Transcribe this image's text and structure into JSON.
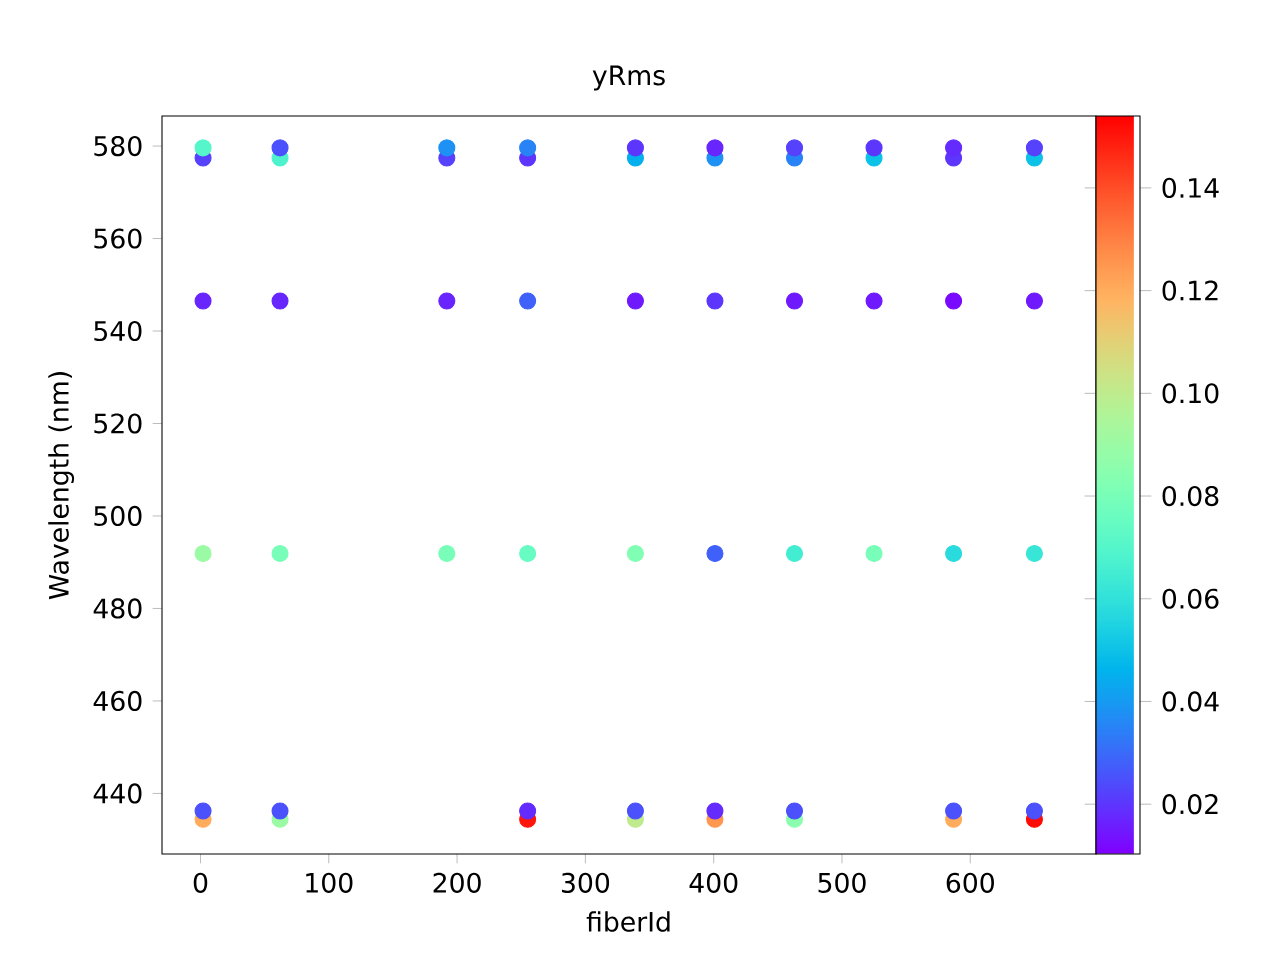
{
  "chart_data": {
    "type": "scatter",
    "title": "yRms",
    "xlabel": "fiberId",
    "ylabel": "Wavelength (nm)",
    "x": [
      2,
      62,
      192,
      255,
      339,
      401,
      463,
      525,
      587,
      650,
      2,
      62,
      192,
      255,
      339,
      401,
      463,
      525,
      587,
      650,
      2,
      62,
      192,
      255,
      339,
      401,
      463,
      525,
      587,
      650,
      2,
      62,
      192,
      255,
      339,
      401,
      463,
      525,
      587,
      650,
      2,
      62,
      255,
      339,
      401,
      463,
      587,
      650,
      2,
      62,
      255,
      339,
      401,
      463,
      587,
      650
    ],
    "values": [
      577.4,
      577.4,
      577.4,
      577.4,
      577.4,
      577.4,
      577.4,
      577.4,
      577.4,
      577.4,
      579.6,
      579.6,
      579.6,
      579.6,
      579.6,
      579.6,
      579.6,
      579.6,
      579.6,
      579.6,
      546.5,
      546.5,
      546.5,
      546.5,
      546.5,
      546.5,
      546.5,
      546.5,
      546.5,
      546.5,
      491.9,
      491.9,
      491.9,
      491.9,
      491.9,
      491.9,
      491.9,
      491.9,
      491.9,
      491.9,
      434.4,
      434.4,
      434.4,
      434.4,
      434.4,
      434.4,
      434.4,
      434.4,
      436.2,
      436.2,
      436.2,
      436.2,
      436.2,
      436.2,
      436.2,
      436.2
    ],
    "cvalues": [
      0.022,
      0.068,
      0.022,
      0.02,
      0.045,
      0.038,
      0.035,
      0.05,
      0.02,
      0.05,
      0.07,
      0.025,
      0.038,
      0.035,
      0.02,
      0.017,
      0.022,
      0.02,
      0.018,
      0.022,
      0.017,
      0.017,
      0.017,
      0.028,
      0.015,
      0.02,
      0.015,
      0.015,
      0.012,
      0.015,
      0.09,
      0.08,
      0.08,
      0.075,
      0.082,
      0.028,
      0.065,
      0.08,
      0.058,
      0.062,
      0.12,
      0.09,
      0.15,
      0.1,
      0.125,
      0.085,
      0.12,
      0.152,
      0.025,
      0.025,
      0.018,
      0.025,
      0.018,
      0.025,
      0.025,
      0.025
    ],
    "xlim": [
      -30,
      698
    ],
    "ylim": [
      426.9,
      586.5
    ],
    "xticks": [
      0,
      100,
      200,
      300,
      400,
      500,
      600
    ],
    "yticks": [
      440,
      460,
      480,
      500,
      520,
      540,
      560,
      580
    ],
    "clim": [
      0.0103,
      0.154
    ],
    "cticks": [
      0.02,
      0.04,
      0.06,
      0.08,
      {
        "value": 0.1,
        "label": "0.10"
      },
      0.12,
      0.14
    ],
    "marker": "circle"
  }
}
